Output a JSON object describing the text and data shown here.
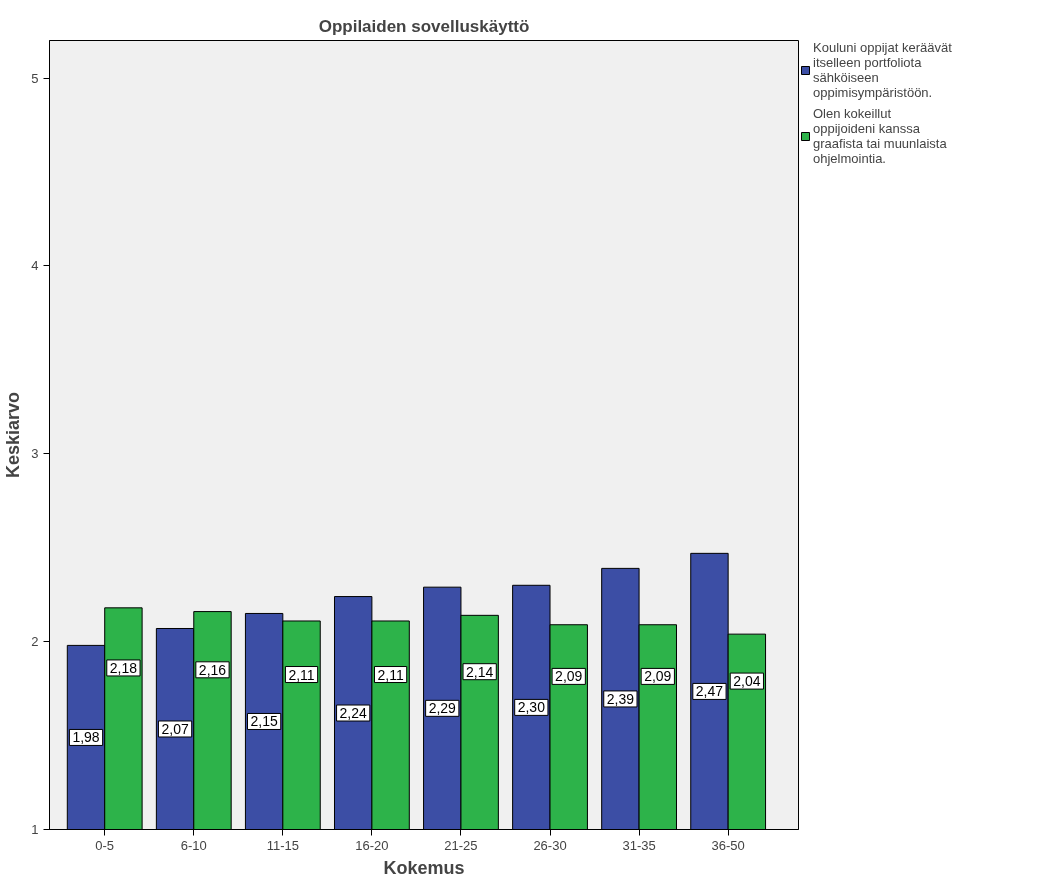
{
  "chart_data": {
    "type": "bar",
    "title": "Oppilaiden sovelluskäyttö",
    "xlabel": "Kokemus",
    "ylabel": "Keskiarvo",
    "categories": [
      "0-5",
      "6-10",
      "11-15",
      "16-20",
      "21-25",
      "26-30",
      "31-35",
      "36-50"
    ],
    "series": [
      {
        "name": "Kouluni oppijat keräävät itselleen portfoliota sähköiseen oppimisympäristöön.",
        "color": "#3c4ea5",
        "values": [
          1.98,
          2.07,
          2.15,
          2.24,
          2.29,
          2.3,
          2.39,
          2.47
        ],
        "value_labels": [
          "1,98",
          "2,07",
          "2,15",
          "2,24",
          "2,29",
          "2,30",
          "2,39",
          "2,47"
        ]
      },
      {
        "name": "Olen kokeillut  oppijoideni kanssa graafista tai muunlaista ohjelmointia.",
        "color": "#2db34a",
        "values": [
          2.18,
          2.16,
          2.11,
          2.11,
          2.14,
          2.09,
          2.09,
          2.04
        ],
        "value_labels": [
          "2,18",
          "2,16",
          "2,11",
          "2,11",
          "2,14",
          "2,09",
          "2,09",
          "2,04"
        ]
      }
    ],
    "ylim": [
      1,
      5.2
    ],
    "yticks": [
      1,
      2,
      3,
      4,
      5
    ],
    "grid": false,
    "legend": "top right"
  }
}
